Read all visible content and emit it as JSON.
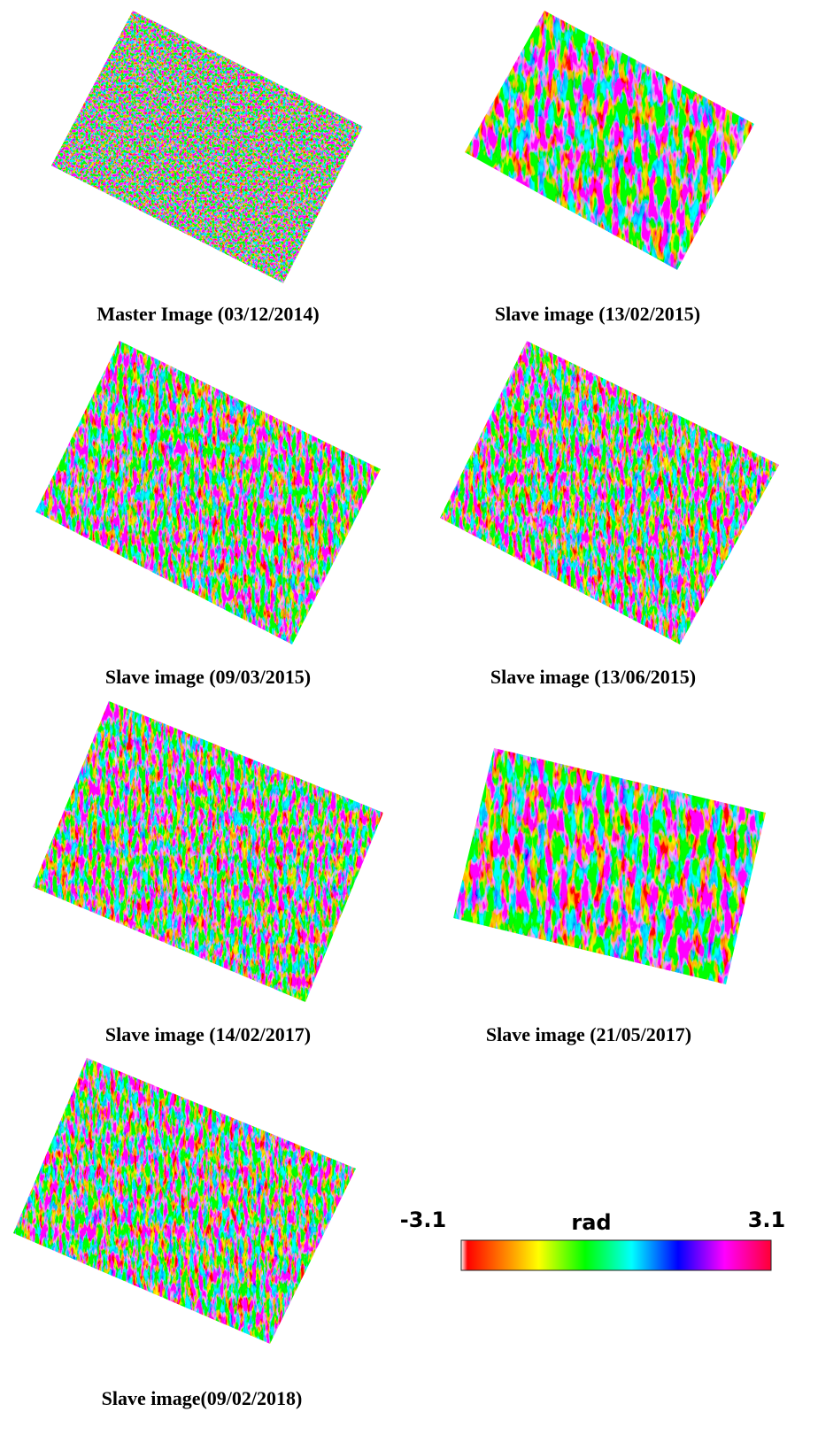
{
  "figure": {
    "panels": [
      {
        "caption": "Master Image (03/12/2014)"
      },
      {
        "caption": "Slave image (13/02/2015)"
      },
      {
        "caption": "Slave image (09/03/2015)"
      },
      {
        "caption": "Slave image (13/06/2015)"
      },
      {
        "caption": "Slave image (14/02/2017)"
      },
      {
        "caption": "Slave image (21/05/2017)"
      },
      {
        "caption": "Slave image(09/02/2018)"
      }
    ],
    "colorbar": {
      "min_label": "-3.1",
      "unit": "rad",
      "max_label": "3.1"
    }
  }
}
